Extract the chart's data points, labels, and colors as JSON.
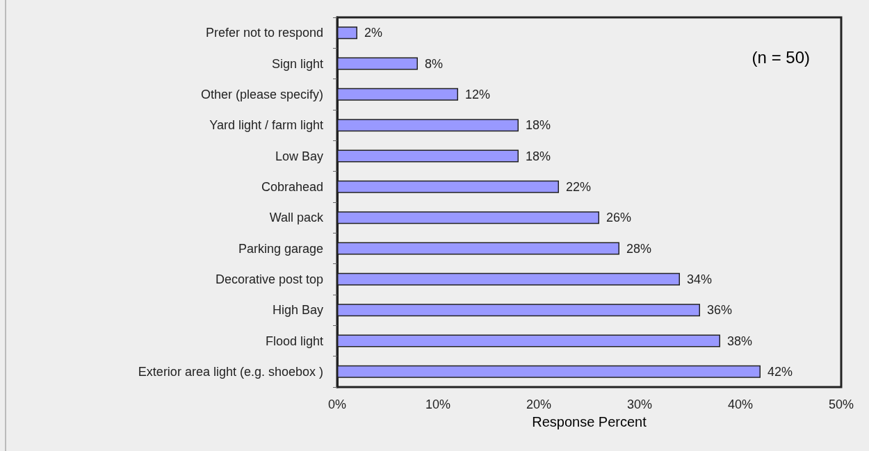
{
  "chart_data": {
    "type": "bar",
    "orientation": "horizontal",
    "xlabel": "Response Percent",
    "categories": [
      "Prefer not to respond",
      "Sign light",
      "Other (please specify)",
      "Yard light / farm light",
      "Low Bay",
      "Cobrahead",
      "Wall pack",
      "Parking garage",
      "Decorative post top",
      "High Bay",
      "Flood light",
      "Exterior area light (e.g. shoebox )"
    ],
    "values": [
      2,
      8,
      12,
      18,
      18,
      22,
      26,
      28,
      34,
      36,
      38,
      42
    ],
    "value_labels": [
      "2%",
      "8%",
      "12%",
      "18%",
      "18%",
      "22%",
      "26%",
      "28%",
      "34%",
      "36%",
      "38%",
      "42%"
    ],
    "color": "#9999ff",
    "xlim": [
      0,
      50
    ],
    "xticks": [
      {
        "value": 0,
        "label": "0%"
      },
      {
        "value": 10,
        "label": "10%"
      },
      {
        "value": 20,
        "label": "20%"
      },
      {
        "value": 30,
        "label": "30%"
      },
      {
        "value": 40,
        "label": "40%"
      },
      {
        "value": 50,
        "label": "50%"
      }
    ],
    "grid": false,
    "annotations": [
      "(n = 50)"
    ]
  }
}
